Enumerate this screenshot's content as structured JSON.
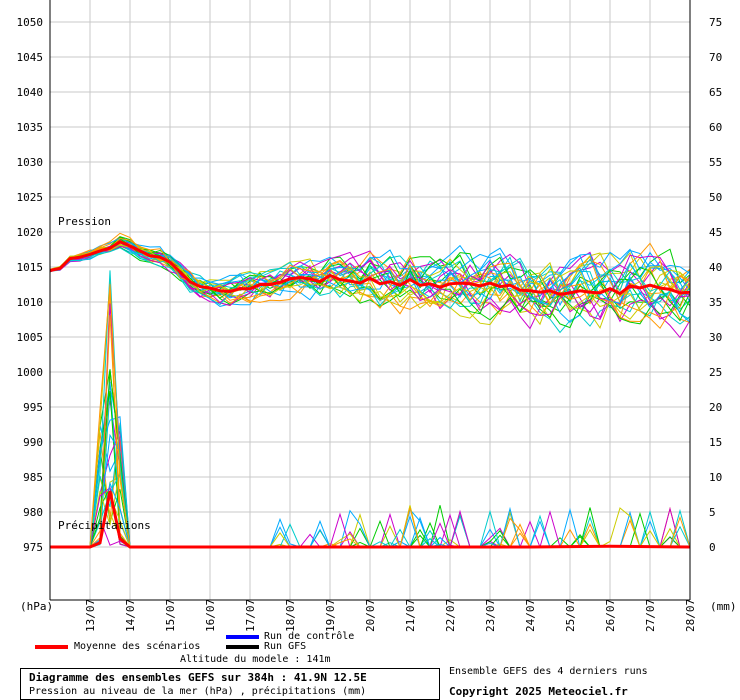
{
  "chart_data": {
    "type": "line",
    "title": "Diagramme des ensembles GEFS sur 384h : 41.9N 12.5E",
    "subtitle": "Pression au niveau de la mer (hPa) , précipitations (mm)",
    "left_axis": {
      "unit_label": "(hPa)",
      "ticks": [
        1050,
        1045,
        1040,
        1035,
        1030,
        1025,
        1020,
        1015,
        1010,
        1005,
        1000,
        995,
        990,
        985,
        980,
        975
      ],
      "ylim": [
        975,
        1050
      ]
    },
    "right_axis": {
      "unit_label": "(mm)",
      "ticks": [
        75,
        70,
        65,
        60,
        55,
        50,
        45,
        40,
        35,
        30,
        25,
        20,
        15,
        10,
        5,
        0
      ],
      "ylim": [
        0,
        75
      ]
    },
    "x_ticks": [
      "13/07",
      "14/07",
      "15/07",
      "16/07",
      "17/07",
      "18/07",
      "19/07",
      "20/07",
      "21/07",
      "22/07",
      "23/07",
      "24/07",
      "25/07",
      "26/07",
      "27/07",
      "28/07"
    ],
    "xlim_days": [
      0,
      16
    ],
    "grid": true,
    "annotations": {
      "pressure": "Pression",
      "precip": "Précipitations"
    },
    "ensemble_colors": [
      "#00cc00",
      "#cc00cc",
      "#00aaff",
      "#cccc00",
      "#00cccc",
      "#ff9900"
    ],
    "series": [
      {
        "name": "Moyenne des scénarios",
        "color": "#ff0000",
        "axis": "left",
        "x": [
          0,
          0.25,
          0.5,
          0.75,
          1,
          1.25,
          1.5,
          1.75,
          2,
          2.25,
          2.5,
          2.75,
          3,
          3.25,
          3.5,
          3.75,
          4,
          4.25,
          4.5,
          4.75,
          5,
          5.25,
          5.5,
          5.75,
          6,
          6.25,
          6.5,
          6.75,
          7,
          7.25,
          7.5,
          7.75,
          8,
          8.25,
          8.5,
          8.75,
          9,
          9.25,
          9.5,
          9.75,
          10,
          10.25,
          10.5,
          10.75,
          11,
          11.25,
          11.5,
          11.75,
          12,
          12.25,
          12.5,
          12.75,
          13,
          13.25,
          13.5,
          13.75,
          14,
          14.25,
          14.5,
          14.75,
          15,
          15.25,
          15.5,
          15.75,
          16
        ],
        "values": [
          1014.5,
          1014.8,
          1016.2,
          1016.4,
          1016.8,
          1017.3,
          1017.7,
          1018.6,
          1018.0,
          1017.3,
          1016.6,
          1016.4,
          1015.7,
          1014.3,
          1012.9,
          1012.2,
          1012.0,
          1011.6,
          1011.5,
          1011.9,
          1011.9,
          1012.5,
          1012.5,
          1012.8,
          1013.3,
          1013.5,
          1013.3,
          1012.9,
          1013.8,
          1013.2,
          1013.0,
          1012.7,
          1013.4,
          1012.6,
          1012.9,
          1012.4,
          1013.2,
          1012.4,
          1012.6,
          1012.1,
          1012.6,
          1012.7,
          1012.6,
          1012.3,
          1012.7,
          1012.2,
          1012.4,
          1011.7,
          1011.6,
          1011.4,
          1011.6,
          1011.1,
          1011.3,
          1011.6,
          1011.4,
          1011.3,
          1011.9,
          1011.2,
          1012.3,
          1012.0,
          1012.4,
          1012.0,
          1011.8,
          1011.3,
          1011.4
        ]
      },
      {
        "name": "Moyenne des scénarios",
        "color": "#ff0000",
        "axis": "right",
        "x": [
          0,
          0.5,
          1,
          1.25,
          1.5,
          1.75,
          2,
          3,
          4,
          4.5,
          5,
          6,
          8,
          10,
          12,
          14,
          16
        ],
        "values": [
          0,
          0,
          0,
          0.6,
          8,
          1.2,
          0,
          0,
          0,
          0,
          0,
          0,
          0,
          0,
          0,
          0.1,
          0
        ]
      }
    ],
    "legend": [
      {
        "label": "Run de contrôle",
        "color": "#0000ff"
      },
      {
        "label": "Run GFS",
        "color": "#000000"
      },
      {
        "label": "Moyenne des scénarios",
        "color": "#ff0000"
      }
    ]
  },
  "footer": {
    "altitude": "Altitude du modele : 141m",
    "ensemble_note": "Ensemble GEFS des 4 derniers runs",
    "copyright": "Copyright 2025 Meteociel.fr"
  }
}
